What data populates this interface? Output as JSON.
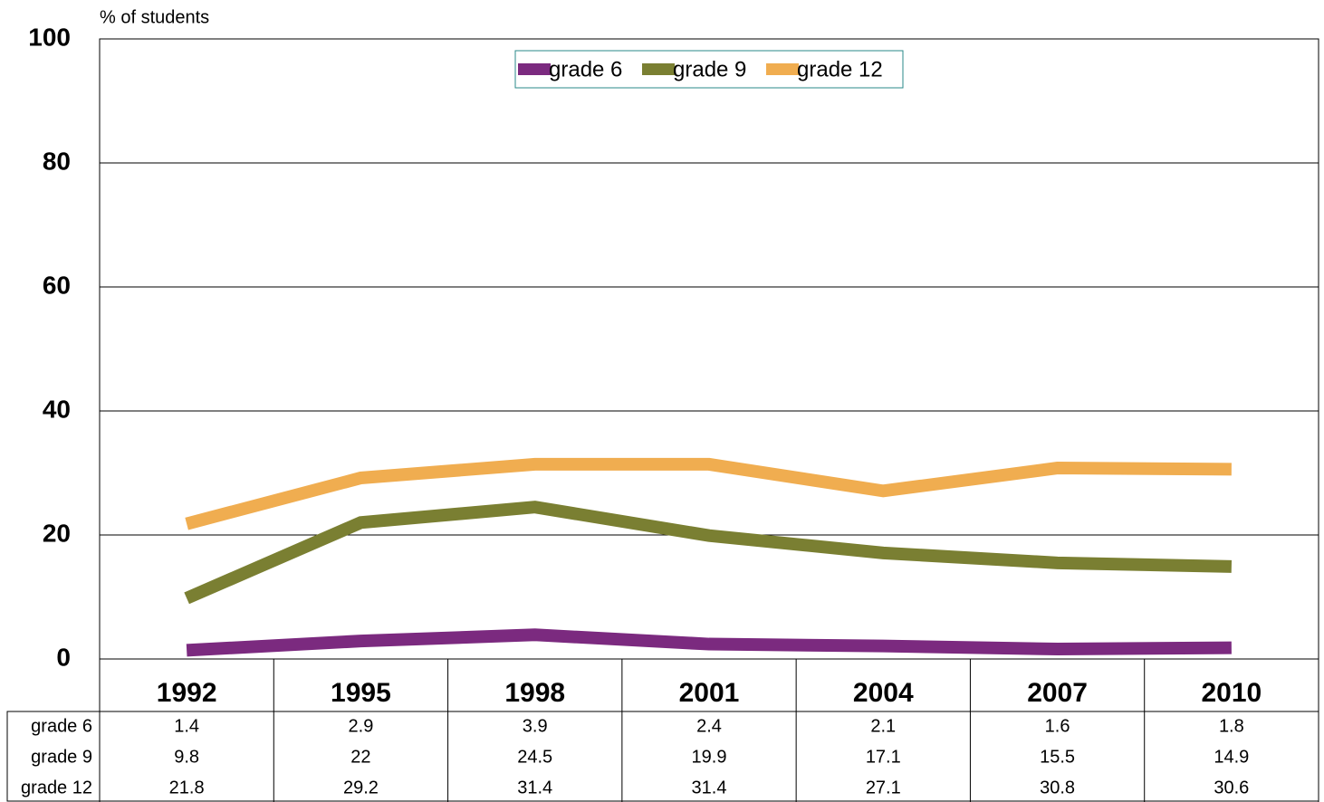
{
  "chart_data": {
    "type": "line",
    "y_axis_label": "% of students",
    "categories": [
      "1992",
      "1995",
      "1998",
      "2001",
      "2004",
      "2007",
      "2010"
    ],
    "series": [
      {
        "name": "grade 6",
        "color": "#7b2a7f",
        "values": [
          1.4,
          2.9,
          3.9,
          2.4,
          2.1,
          1.6,
          1.8
        ]
      },
      {
        "name": "grade 9",
        "color": "#7a7f32",
        "values": [
          9.8,
          22,
          24.5,
          19.9,
          17.1,
          15.5,
          14.9
        ]
      },
      {
        "name": "grade 12",
        "color": "#f0ad50",
        "values": [
          21.8,
          29.2,
          31.4,
          31.4,
          27.1,
          30.8,
          30.6
        ]
      }
    ],
    "ylim": [
      0,
      100
    ],
    "yticks": [
      0,
      20,
      40,
      60,
      80,
      100
    ],
    "grid": true,
    "legend": "top"
  }
}
